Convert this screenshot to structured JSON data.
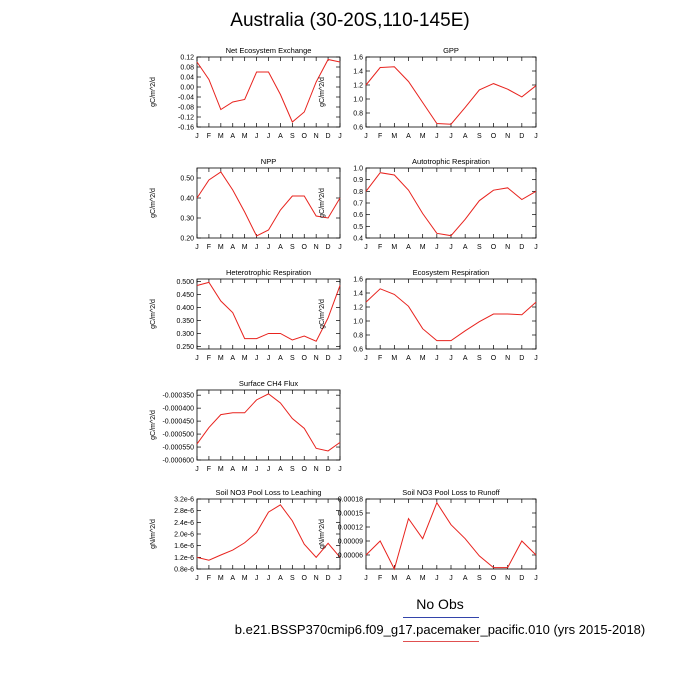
{
  "title": "Australia (30-20S,110-145E)",
  "footer": {
    "obs_label": "No Obs",
    "case_label": "b.e21.BSSP370cmip6.f09_g17.pacemaker_pacific.010 (yrs 2015-2018)"
  },
  "colors": {
    "line": "#e8231e",
    "axis": "#000000"
  },
  "chart_data": [
    {
      "type": "line",
      "title": "Net Ecosystem Exchange",
      "ylabel": "gC/m^2/d",
      "x": [
        "J",
        "F",
        "M",
        "A",
        "M",
        "J",
        "J",
        "A",
        "S",
        "O",
        "N",
        "D",
        "J"
      ],
      "values": [
        0.1,
        0.03,
        -0.09,
        -0.06,
        -0.05,
        0.06,
        0.06,
        -0.03,
        -0.14,
        -0.1,
        0.02,
        0.11,
        0.1
      ],
      "ylim": [
        -0.16,
        0.12
      ],
      "yticks": [
        -0.16,
        -0.12,
        -0.08,
        -0.04,
        0.0,
        0.04,
        0.08,
        0.12
      ],
      "ytick_labels": [
        "-0.16",
        "-0.12",
        "-0.08",
        "-0.04",
        "0.00",
        "0.04",
        "0.08",
        "0.12"
      ]
    },
    {
      "type": "line",
      "title": "GPP",
      "ylabel": "gC/m^2/d",
      "x": [
        "J",
        "F",
        "M",
        "A",
        "M",
        "J",
        "J",
        "A",
        "S",
        "O",
        "N",
        "D",
        "J"
      ],
      "values": [
        1.2,
        1.45,
        1.46,
        1.25,
        0.95,
        0.65,
        0.64,
        0.88,
        1.13,
        1.22,
        1.14,
        1.03,
        1.19
      ],
      "ylim": [
        0.6,
        1.6
      ],
      "yticks": [
        0.6,
        0.8,
        1.0,
        1.2,
        1.4,
        1.6
      ],
      "ytick_labels": [
        "0.6",
        "0.8",
        "1.0",
        "1.2",
        "1.4",
        "1.6"
      ]
    },
    {
      "type": "line",
      "title": "NPP",
      "ylabel": "gC/m^2/d",
      "x": [
        "J",
        "F",
        "M",
        "A",
        "M",
        "J",
        "J",
        "A",
        "S",
        "O",
        "N",
        "D",
        "J"
      ],
      "values": [
        0.4,
        0.49,
        0.53,
        0.44,
        0.33,
        0.21,
        0.24,
        0.34,
        0.41,
        0.41,
        0.31,
        0.3,
        0.4
      ],
      "ylim": [
        0.2,
        0.55
      ],
      "yticks": [
        0.2,
        0.3,
        0.4,
        0.5
      ],
      "ytick_labels": [
        "0.20",
        "0.30",
        "0.40",
        "0.50"
      ]
    },
    {
      "type": "line",
      "title": "Autotrophic Respiration",
      "ylabel": "gC/m^2/d",
      "x": [
        "J",
        "F",
        "M",
        "A",
        "M",
        "J",
        "J",
        "A",
        "S",
        "O",
        "N",
        "D",
        "J"
      ],
      "values": [
        0.8,
        0.96,
        0.94,
        0.81,
        0.61,
        0.44,
        0.42,
        0.56,
        0.72,
        0.81,
        0.83,
        0.73,
        0.8
      ],
      "ylim": [
        0.4,
        1.0
      ],
      "yticks": [
        0.4,
        0.5,
        0.6,
        0.7,
        0.8,
        0.9,
        1.0
      ],
      "ytick_labels": [
        "0.4",
        "0.5",
        "0.6",
        "0.7",
        "0.8",
        "0.9",
        "1.0"
      ]
    },
    {
      "type": "line",
      "title": "Heterotrophic Respiration",
      "ylabel": "gC/m^2/d",
      "x": [
        "J",
        "F",
        "M",
        "A",
        "M",
        "J",
        "J",
        "A",
        "S",
        "O",
        "N",
        "D",
        "J"
      ],
      "values": [
        0.485,
        0.497,
        0.425,
        0.38,
        0.28,
        0.28,
        0.3,
        0.3,
        0.275,
        0.29,
        0.27,
        0.36,
        0.485
      ],
      "ylim": [
        0.24,
        0.51
      ],
      "yticks": [
        0.25,
        0.3,
        0.35,
        0.4,
        0.45,
        0.5
      ],
      "ytick_labels": [
        "0.250",
        "0.300",
        "0.350",
        "0.400",
        "0.450",
        "0.500"
      ]
    },
    {
      "type": "line",
      "title": "Ecosystem Respiration",
      "ylabel": "gC/m^2/d",
      "x": [
        "J",
        "F",
        "M",
        "A",
        "M",
        "J",
        "J",
        "A",
        "S",
        "O",
        "N",
        "D",
        "J"
      ],
      "values": [
        1.27,
        1.46,
        1.38,
        1.21,
        0.89,
        0.72,
        0.72,
        0.86,
        0.99,
        1.1,
        1.1,
        1.09,
        1.27
      ],
      "ylim": [
        0.6,
        1.6
      ],
      "yticks": [
        0.6,
        0.8,
        1.0,
        1.2,
        1.4,
        1.6
      ],
      "ytick_labels": [
        "0.6",
        "0.8",
        "1.0",
        "1.2",
        "1.4",
        "1.6"
      ]
    },
    {
      "type": "line",
      "title": "Surface CH4 Flux",
      "ylabel": "gC/m^2/d",
      "x": [
        "J",
        "F",
        "M",
        "A",
        "M",
        "J",
        "J",
        "A",
        "S",
        "O",
        "N",
        "D",
        "J"
      ],
      "values": [
        -0.000538,
        -0.000475,
        -0.000425,
        -0.000418,
        -0.000418,
        -0.000368,
        -0.000345,
        -0.00038,
        -0.00044,
        -0.000478,
        -0.000555,
        -0.000565,
        -0.000532
      ],
      "ylim": [
        -0.0006,
        -0.00033
      ],
      "yticks": [
        -0.0006,
        -0.00055,
        -0.0005,
        -0.00045,
        -0.0004,
        -0.00035
      ],
      "ytick_labels": [
        "-0.000600",
        "-0.000550",
        "-0.000500",
        "-0.000450",
        "-0.000400",
        "-0.000350"
      ]
    },
    {
      "type": "line",
      "title": "Soil NO3 Pool Loss to Leaching",
      "ylabel": "gN/m^2/d",
      "x": [
        "J",
        "F",
        "M",
        "A",
        "M",
        "J",
        "J",
        "A",
        "S",
        "O",
        "N",
        "D",
        "J"
      ],
      "values": [
        1.2e-06,
        1.1e-06,
        1.28e-06,
        1.45e-06,
        1.7e-06,
        2.05e-06,
        2.75e-06,
        3e-06,
        2.45e-06,
        1.65e-06,
        1.2e-06,
        1.68e-06,
        1.2e-06
      ],
      "ylim": [
        8e-07,
        3.2e-06
      ],
      "yticks": [
        8e-07,
        1.2e-06,
        1.6e-06,
        2e-06,
        2.4e-06,
        2.8e-06,
        3.2e-06
      ],
      "ytick_labels": [
        "0.8e-6",
        "1.2e-6",
        "1.6e-6",
        "2.0e-6",
        "2.4e-6",
        "2.8e-6",
        "3.2e-6"
      ]
    },
    {
      "type": "line",
      "title": "Soil NO3 Pool Loss to Runoff",
      "ylabel": "gN/m^2/d",
      "x": [
        "J",
        "F",
        "M",
        "A",
        "M",
        "J",
        "J",
        "A",
        "S",
        "O",
        "N",
        "D",
        "J"
      ],
      "values": [
        6e-05,
        9e-05,
        3e-05,
        0.000138,
        9.5e-05,
        0.000172,
        0.000125,
        9.5e-05,
        5.8e-05,
        3.3e-05,
        3.3e-05,
        9e-05,
        6e-05
      ],
      "ylim": [
        3e-05,
        0.00018
      ],
      "yticks": [
        6e-05,
        9e-05,
        0.00012,
        0.00015,
        0.00018
      ],
      "ytick_labels": [
        "0.00006",
        "0.00009",
        "0.00012",
        "0.00015",
        "0.00018"
      ]
    }
  ]
}
